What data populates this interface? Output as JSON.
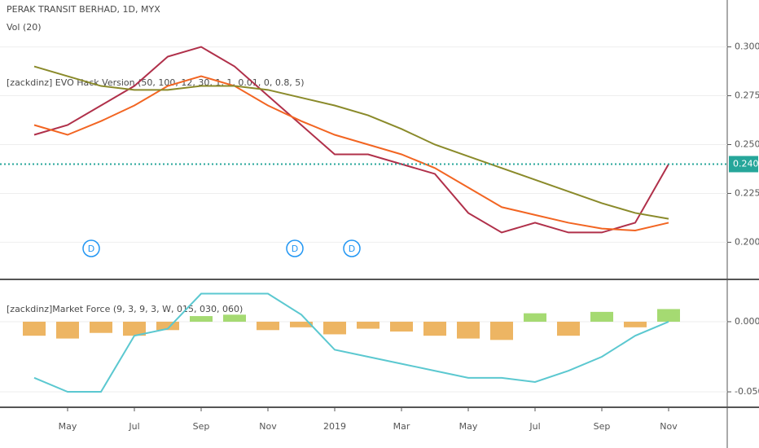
{
  "chart_data": [
    {
      "type": "line",
      "title": "PERAK TRANSIT BERHAD, 1D, MYX",
      "annotations": [
        "Vol (20)",
        "[zackdinz] EVO Hack Version (50, 100, 12, 30, 1, 1, 0.01, 0, 0.8, 5)"
      ],
      "categories": [
        null,
        "May",
        null,
        "Jul",
        null,
        "Sep",
        null,
        "Nov",
        null,
        "2019",
        null,
        "Mar",
        null,
        "May",
        null,
        "Jul",
        null,
        "Sep",
        null,
        "Nov"
      ],
      "series": [
        {
          "color": "#b0304a",
          "values": [
            0.255,
            0.26,
            0.27,
            0.28,
            0.295,
            0.3,
            0.29,
            0.275,
            0.26,
            0.245,
            0.245,
            0.24,
            0.235,
            0.215,
            0.205,
            0.21,
            0.205,
            0.205,
            0.21,
            0.24
          ]
        },
        {
          "color": "#f26522",
          "values": [
            0.26,
            0.255,
            0.262,
            0.27,
            0.28,
            0.285,
            0.28,
            0.27,
            0.262,
            0.255,
            0.25,
            0.245,
            0.238,
            0.228,
            0.218,
            0.214,
            0.21,
            0.207,
            0.206,
            0.21
          ]
        },
        {
          "color": "#8a8a2a",
          "values": [
            0.29,
            0.285,
            0.28,
            0.278,
            0.278,
            0.28,
            0.28,
            0.278,
            0.274,
            0.27,
            0.265,
            0.258,
            0.25,
            0.244,
            0.238,
            0.232,
            0.226,
            0.22,
            0.215,
            0.212
          ]
        }
      ],
      "ylim": [
        0.181,
        0.324
      ],
      "yticks": [
        {
          "value": 0.3,
          "label": "0.300"
        },
        {
          "value": 0.275,
          "label": "0.275"
        },
        {
          "value": 0.25,
          "label": "0.250"
        },
        {
          "value": 0.225,
          "label": "0.225"
        },
        {
          "value": 0.2,
          "label": "0.200"
        }
      ],
      "last_price": {
        "value": 0.24,
        "label": "0.240",
        "color": "#26a69a"
      },
      "markers": [
        "D",
        "D",
        "D"
      ]
    },
    {
      "type": "combo",
      "title": "[zackdinz]Market Force (9, 3, 9, 3, W, 015, 030, 060)",
      "categories": [
        null,
        "May",
        null,
        "Jul",
        null,
        "Sep",
        null,
        "Nov",
        null,
        "2019",
        null,
        "Mar",
        null,
        "May",
        null,
        "Jul",
        null,
        "Sep",
        null,
        "Nov"
      ],
      "series": [
        {
          "type": "bar",
          "color": "#e8a33c",
          "values": [
            -0.01,
            -0.012,
            -0.008,
            -0.01,
            -0.006,
            0.004,
            0.005,
            -0.006,
            -0.004,
            -0.009,
            -0.005,
            -0.007,
            -0.01,
            -0.012,
            -0.013,
            0.006,
            -0.01,
            0.007,
            -0.004,
            0.009
          ]
        },
        {
          "type": "line",
          "color": "#5bc8d0",
          "values": [
            -0.04,
            -0.05,
            -0.05,
            -0.01,
            -0.005,
            0.02,
            0.02,
            0.02,
            0.005,
            -0.02,
            -0.025,
            -0.03,
            -0.035,
            -0.04,
            -0.04,
            -0.043,
            -0.035,
            -0.025,
            -0.01,
            0.0
          ]
        }
      ],
      "ylim": [
        -0.061,
        0.029
      ],
      "yticks": [
        {
          "value": 0.0,
          "label": "0.000"
        },
        {
          "value": -0.05,
          "label": "-0.050"
        }
      ]
    }
  ]
}
